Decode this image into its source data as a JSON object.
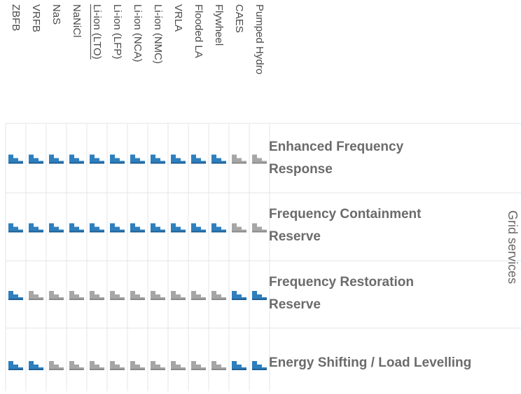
{
  "technologies": [
    "ZBFB",
    "VRFB",
    "NaS",
    "NaNiCl",
    "Li-ion (LTO)",
    "Li-ion (LFP)",
    "Li-ion (NCA)",
    "Li-ion (NMC)",
    "VRLA",
    "Flooded LA",
    "Flywheel",
    "CAES",
    "Pumped Hydro"
  ],
  "category": "Grid services",
  "rows": [
    {
      "label_line1": "Enhanced Frequency",
      "label_line2": "Response",
      "ratings": [
        "blue",
        "blue",
        "blue",
        "blue",
        "blue",
        "blue",
        "blue",
        "blue",
        "blue",
        "blue",
        "blue",
        "gray",
        "gray"
      ]
    },
    {
      "label_line1": "Frequency Containment",
      "label_line2": "Reserve",
      "ratings": [
        "blue",
        "blue",
        "blue",
        "blue",
        "blue",
        "blue",
        "blue",
        "blue",
        "blue",
        "blue",
        "blue",
        "gray",
        "gray"
      ]
    },
    {
      "label_line1": "Frequency Restoration",
      "label_line2": "Reserve",
      "ratings": [
        "blue",
        "gray",
        "gray",
        "gray",
        "gray",
        "gray",
        "gray",
        "gray",
        "gray",
        "gray",
        "gray",
        "blue",
        "blue"
      ]
    },
    {
      "label_line1": "Energy Shifting / Load Levelling",
      "label_line2": "",
      "ratings": [
        "blue",
        "blue",
        "gray",
        "gray",
        "gray",
        "gray",
        "gray",
        "gray",
        "gray",
        "gray",
        "gray",
        "blue",
        "blue"
      ]
    }
  ],
  "colors": {
    "blue": "#2e7fbe",
    "gray": "#a6a6a6",
    "text": "#6b6b6b",
    "border": "#e3e6ea"
  },
  "icon": "staircase-rating-icon"
}
